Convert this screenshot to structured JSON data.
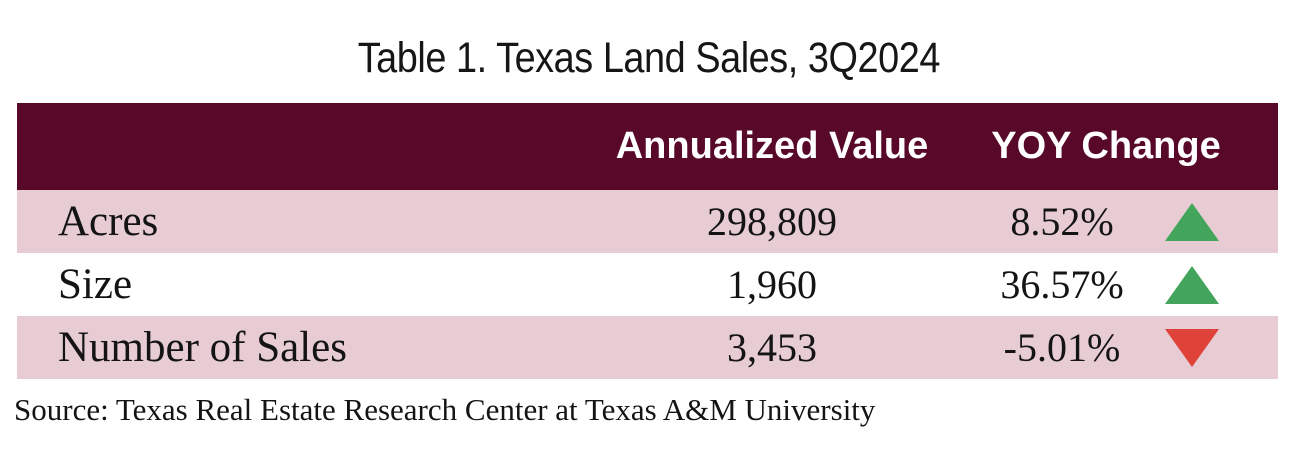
{
  "title": "Table 1. Texas Land Sales, 3Q2024",
  "table": {
    "headers": {
      "annualized_value": "Annualized Value",
      "yoy_change": "YOY Change"
    },
    "rows": [
      {
        "label": "Acres",
        "value": "298,809",
        "yoy": "8.52%",
        "direction": "up"
      },
      {
        "label": "Size",
        "value": "1,960",
        "yoy": "36.57%",
        "direction": "up"
      },
      {
        "label": "Number of Sales",
        "value": "3,453",
        "yoy": "-5.01%",
        "direction": "down"
      }
    ]
  },
  "source": "Source: Texas Real Estate Research Center at Texas A&M University",
  "colors": {
    "header_bg": "#580829",
    "alt_row_bg": "#E7CCD4",
    "up_triangle_green": "#43A45C",
    "down_triangle_red": "#DF4238",
    "header_text": "#FFFFFF",
    "body_text": "#141414"
  },
  "chart_data": {
    "type": "table",
    "title": "Table 1. Texas Land Sales, 3Q2024",
    "columns": [
      "",
      "Annualized Value",
      "YOY Change"
    ],
    "rows": [
      {
        "label": "Acres",
        "annualized_value": 298809,
        "yoy_change_pct": 8.52,
        "trend": "up"
      },
      {
        "label": "Size",
        "annualized_value": 1960,
        "yoy_change_pct": 36.57,
        "trend": "up"
      },
      {
        "label": "Number of Sales",
        "annualized_value": 3453,
        "yoy_change_pct": -5.01,
        "trend": "down"
      }
    ],
    "source": "Source: Texas Real Estate Research Center at Texas A&M University",
    "layout": {
      "header_row": "dark maroon with white bold text",
      "row_striping": "rows 1 and 3 light pink, row 2 white",
      "trend_icons": "green up-triangle for positive YOY, red down-triangle for negative"
    }
  }
}
